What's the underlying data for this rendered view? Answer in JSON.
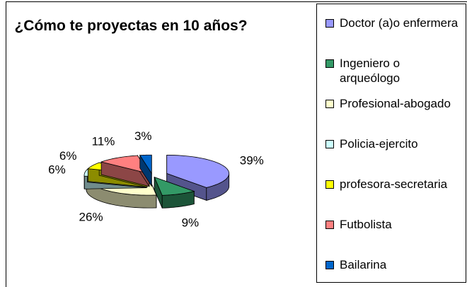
{
  "chart_data": {
    "type": "pie",
    "title": "¿Cómo te proyectas en 10 años?",
    "categories": [
      "Doctor (a)o enfermera",
      "Ingeniero o arqueólogo",
      "Profesional-abogado",
      "Policia-ejercito",
      "profesora-secretaria",
      "Futbolista",
      "Bailarina"
    ],
    "values": [
      39,
      9,
      26,
      6,
      6,
      11,
      3
    ],
    "value_labels": [
      "39%",
      "9%",
      "26%",
      "6%",
      "6%",
      "11%",
      "3%"
    ],
    "colors": [
      "#9999ff",
      "#339966",
      "#ffffcc",
      "#ccffff",
      "#ffff00",
      "#ff8080",
      "#0066cc"
    ],
    "legend": "right"
  }
}
